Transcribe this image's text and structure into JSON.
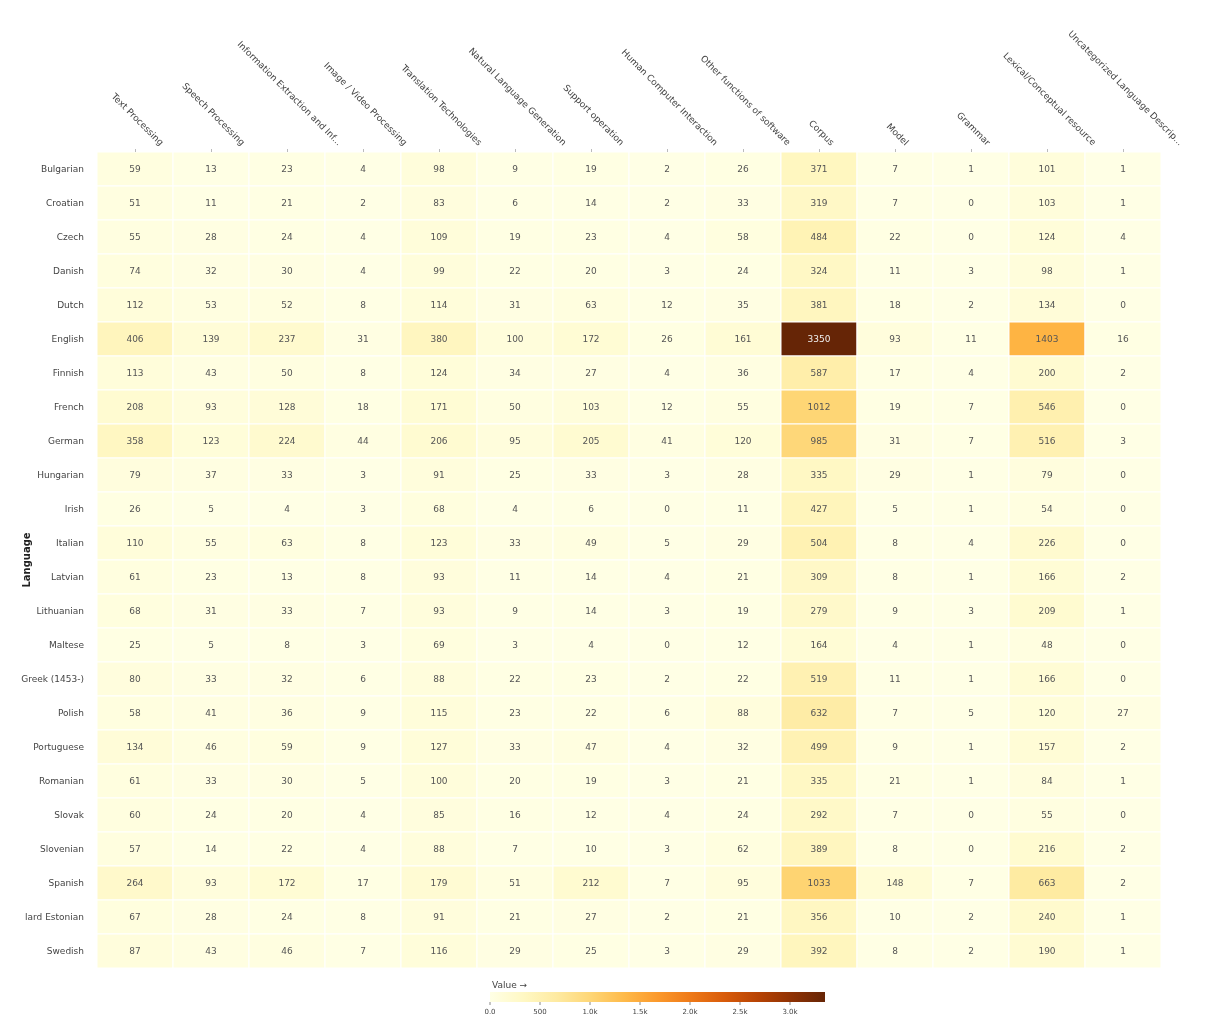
{
  "chart_data": {
    "type": "heatmap",
    "ylabel": "Language",
    "legend_title": "Value →",
    "categories": [
      "Text Processing",
      "Speech Processing",
      "Information Extraction and Inf...",
      "Image / Video Processing",
      "Translation Technologies",
      "Natural Language Generation",
      "Support operation",
      "Human Computer Interaction",
      "Other functions of software",
      "Corpus",
      "Model",
      "Grammar",
      "Lexical/Conceptual resource",
      "Uncategorized Language Descrip..."
    ],
    "y_categories": [
      "Bulgarian",
      "Croatian",
      "Czech",
      "Danish",
      "Dutch",
      "English",
      "Finnish",
      "French",
      "German",
      "Hungarian",
      "Irish",
      "Italian",
      "Latvian",
      "Lithuanian",
      "Maltese",
      "Greek (1453-)",
      "Polish",
      "Portuguese",
      "Romanian",
      "Slovak",
      "Slovenian",
      "Spanish",
      "lard Estonian",
      "Swedish"
    ],
    "cells": [
      [
        59,
        13,
        23,
        4,
        98,
        9,
        19,
        2,
        26,
        371,
        7,
        1,
        101,
        1
      ],
      [
        51,
        11,
        21,
        2,
        83,
        6,
        14,
        2,
        33,
        319,
        7,
        0,
        103,
        1
      ],
      [
        55,
        28,
        24,
        4,
        109,
        19,
        23,
        4,
        58,
        484,
        22,
        0,
        124,
        4
      ],
      [
        74,
        32,
        30,
        4,
        99,
        22,
        20,
        3,
        24,
        324,
        11,
        3,
        98,
        1
      ],
      [
        112,
        53,
        52,
        8,
        114,
        31,
        63,
        12,
        35,
        381,
        18,
        2,
        134,
        0
      ],
      [
        406,
        139,
        237,
        31,
        380,
        100,
        172,
        26,
        161,
        3350,
        93,
        11,
        1403,
        16
      ],
      [
        113,
        43,
        50,
        8,
        124,
        34,
        27,
        4,
        36,
        587,
        17,
        4,
        200,
        2
      ],
      [
        208,
        93,
        128,
        18,
        171,
        50,
        103,
        12,
        55,
        1012,
        19,
        7,
        546,
        0
      ],
      [
        358,
        123,
        224,
        44,
        206,
        95,
        205,
        41,
        120,
        985,
        31,
        7,
        516,
        3
      ],
      [
        79,
        37,
        33,
        3,
        91,
        25,
        33,
        3,
        28,
        335,
        29,
        1,
        79,
        0
      ],
      [
        26,
        5,
        4,
        3,
        68,
        4,
        6,
        0,
        11,
        427,
        5,
        1,
        54,
        0
      ],
      [
        110,
        55,
        63,
        8,
        123,
        33,
        49,
        5,
        29,
        504,
        8,
        4,
        226,
        0
      ],
      [
        61,
        23,
        13,
        8,
        93,
        11,
        14,
        4,
        21,
        309,
        8,
        1,
        166,
        2
      ],
      [
        68,
        31,
        33,
        7,
        93,
        9,
        14,
        3,
        19,
        279,
        9,
        3,
        209,
        1
      ],
      [
        25,
        5,
        8,
        3,
        69,
        3,
        4,
        0,
        12,
        164,
        4,
        1,
        48,
        0
      ],
      [
        80,
        33,
        32,
        6,
        88,
        22,
        23,
        2,
        22,
        519,
        11,
        1,
        166,
        0
      ],
      [
        58,
        41,
        36,
        9,
        115,
        23,
        22,
        6,
        88,
        632,
        7,
        5,
        120,
        27
      ],
      [
        134,
        46,
        59,
        9,
        127,
        33,
        47,
        4,
        32,
        499,
        9,
        1,
        157,
        2
      ],
      [
        61,
        33,
        30,
        5,
        100,
        20,
        19,
        3,
        21,
        335,
        21,
        1,
        84,
        1
      ],
      [
        60,
        24,
        20,
        4,
        85,
        16,
        12,
        4,
        24,
        292,
        7,
        0,
        55,
        0
      ],
      [
        57,
        14,
        22,
        4,
        88,
        7,
        10,
        3,
        62,
        389,
        8,
        0,
        216,
        2
      ],
      [
        264,
        93,
        172,
        17,
        179,
        51,
        212,
        7,
        95,
        1033,
        148,
        7,
        663,
        2
      ],
      [
        67,
        28,
        24,
        8,
        91,
        21,
        27,
        2,
        21,
        356,
        10,
        2,
        240,
        1
      ],
      [
        87,
        43,
        46,
        7,
        116,
        29,
        25,
        3,
        29,
        392,
        8,
        2,
        190,
        1
      ]
    ],
    "data_labels": true,
    "clim": [
      0,
      3350
    ],
    "cticks": [
      {
        "value": 0,
        "label": "0.0"
      },
      500,
      {
        "value": 1000,
        "label": "1.0k"
      },
      {
        "value": 1500,
        "label": "1.5k"
      },
      {
        "value": 2000,
        "label": "2.0k"
      },
      {
        "value": 2500,
        "label": "2.5k"
      },
      {
        "value": 3000,
        "label": "3.0k"
      }
    ]
  }
}
